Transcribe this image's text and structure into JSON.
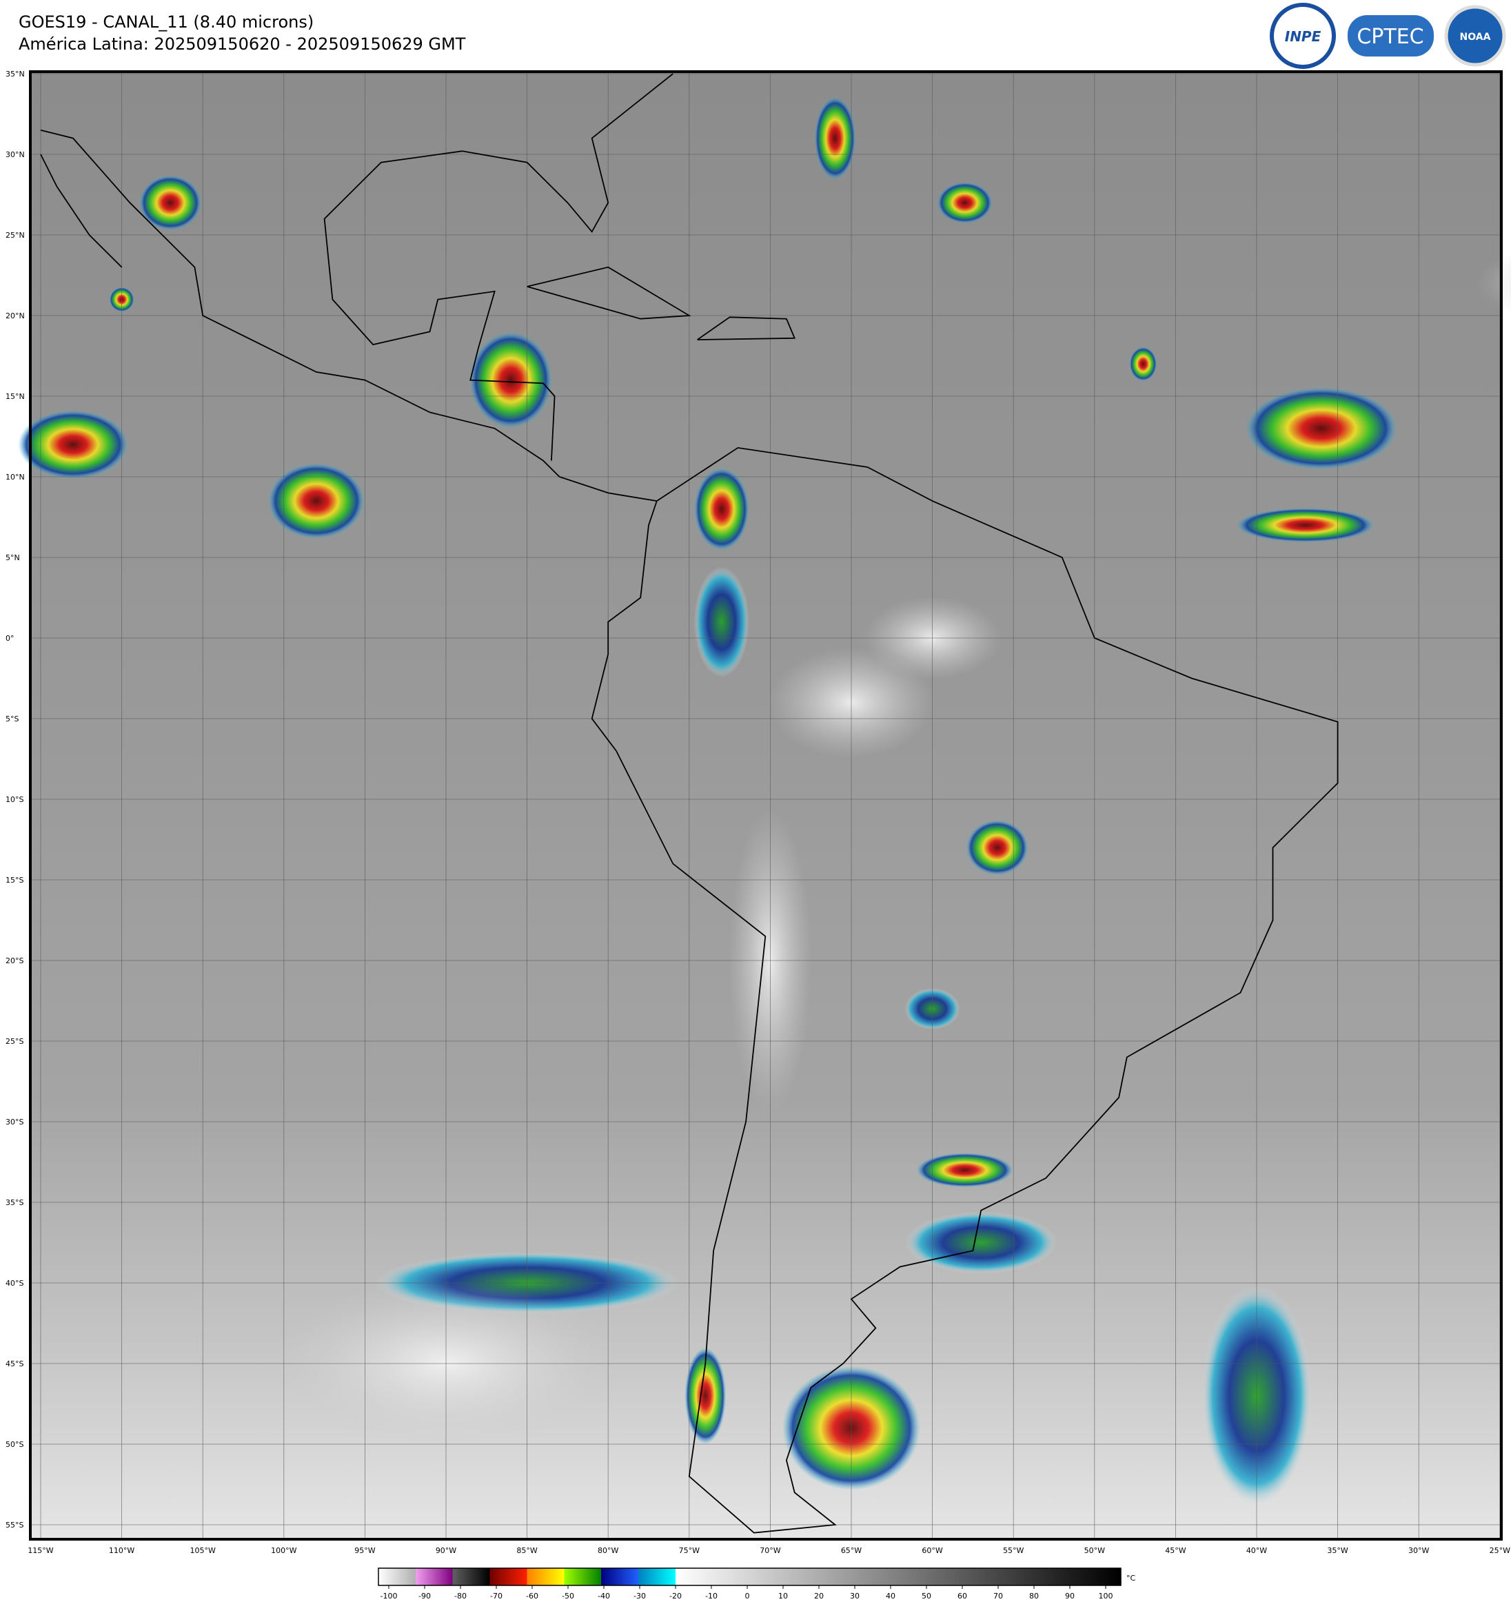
{
  "header": {
    "title": "GOES19 - CANAL_11 (8.40 microns)",
    "subtitle": "América Latina: 202509150620 - 202509150629 GMT"
  },
  "logos": [
    "INPE",
    "CPTEC",
    "NOAA"
  ],
  "map": {
    "lat_labels": [
      "35°N",
      "30°N",
      "25°N",
      "20°N",
      "15°N",
      "10°N",
      "5°N",
      "0°",
      "5°S",
      "10°S",
      "15°S",
      "20°S",
      "25°S",
      "30°S",
      "35°S",
      "40°S",
      "45°S",
      "50°S",
      "55°S"
    ],
    "lon_labels": [
      "115°W",
      "110°W",
      "105°W",
      "100°W",
      "95°W",
      "90°W",
      "85°W",
      "80°W",
      "75°W",
      "70°W",
      "65°W",
      "60°W",
      "55°W",
      "50°W",
      "45°W",
      "40°W",
      "35°W",
      "30°W",
      "25°W"
    ]
  },
  "colorbar": {
    "ticks": [
      -100,
      -90,
      -80,
      -70,
      -60,
      -50,
      -40,
      -30,
      -20,
      -10,
      0,
      10,
      20,
      30,
      40,
      50,
      60,
      70,
      80,
      90,
      100
    ],
    "unit": "°C"
  }
}
